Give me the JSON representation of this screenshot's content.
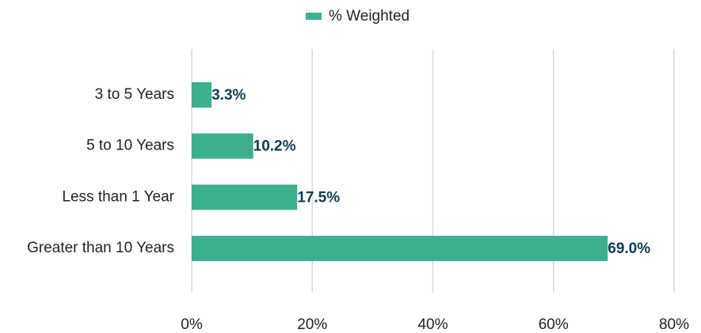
{
  "chart_data": {
    "type": "bar",
    "orientation": "horizontal",
    "categories": [
      "3 to 5 Years",
      "5 to 10 Years",
      "Less than 1 Year",
      "Greater than 10 Years"
    ],
    "series": [
      {
        "name": "% Weighted",
        "color": "#3bb08f",
        "values": [
          3.3,
          10.2,
          17.5,
          69.0
        ],
        "value_labels": [
          "3.3%",
          "10.2%",
          "17.5%",
          "69.0%"
        ]
      }
    ],
    "xlim": [
      0,
      80
    ],
    "xticks": [
      {
        "value": 0,
        "label": "0%"
      },
      {
        "value": 20,
        "label": "20%"
      },
      {
        "value": 40,
        "label": "40%"
      },
      {
        "value": 60,
        "label": "60%"
      },
      {
        "value": 80,
        "label": "80%"
      }
    ],
    "grid": true,
    "legend": "top"
  }
}
